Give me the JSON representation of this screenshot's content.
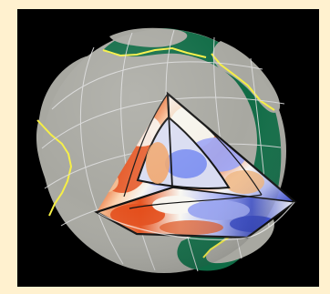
{
  "figure": {
    "subject": "tomography-earth-cutaway-figure",
    "colors": {
      "frame": "#fff1cf",
      "panel_background": "#000000",
      "ocean": "#0f6b45",
      "land": "#a8a8a1",
      "coastline": "#f6ef43",
      "grid_lines": "#dedede",
      "section_outline": "#111111",
      "hot_anomaly": "#e34f1d",
      "warm_anomaly": "#f0b27b",
      "neutral": "#f6f5ef",
      "cool_anomaly": "#b7bff8",
      "cold_anomaly": "#3144c4",
      "core_neutral": "#dfe1f2"
    },
    "parts": {
      "globe": "earth-globe",
      "cutaway": "three-face-wedge-cutaway",
      "core_boundary": "core-mantle-boundary",
      "surface": "continents-and-ocean"
    }
  }
}
